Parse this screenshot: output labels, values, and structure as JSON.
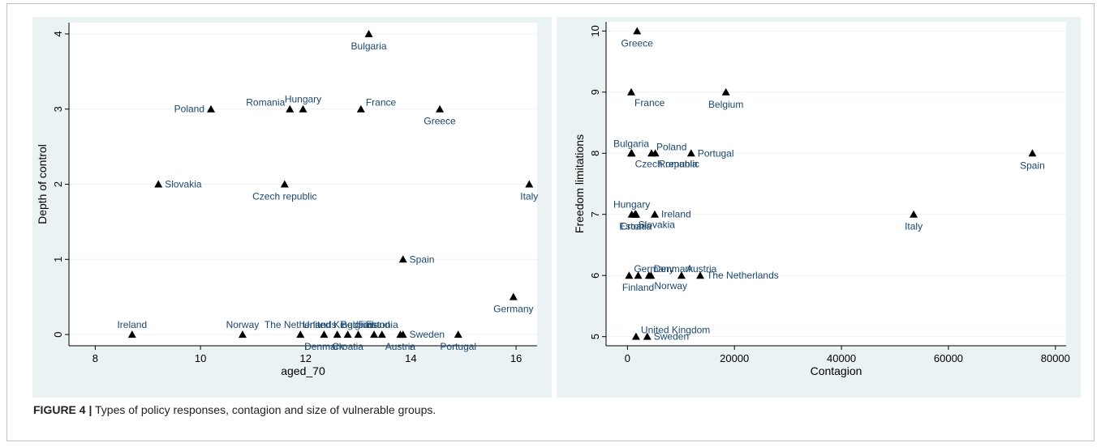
{
  "figure": {
    "label": "FIGURE 4 |",
    "caption": "Types of policy responses, contagion and size of vulnerable groups."
  },
  "colors": {
    "panel_bg": "#eaf2f3",
    "label_text": "#1a476f",
    "marker": "#000000",
    "grid": "#ffffff"
  },
  "chart_data": [
    {
      "type": "scatter",
      "xlabel": "aged_70",
      "ylabel": "Depth of control",
      "xlim": [
        7.5,
        16.4
      ],
      "ylim": [
        -0.15,
        4.15
      ],
      "xticks": [
        "8",
        "10",
        "12",
        "14",
        "16"
      ],
      "xtick_values": [
        8,
        10,
        12,
        14,
        16
      ],
      "yticks": [
        "0",
        "1",
        "2",
        "3",
        "4"
      ],
      "ytick_values": [
        0,
        1,
        2,
        3,
        4
      ],
      "grid": true,
      "points": [
        {
          "label": "Bulgaria",
          "x": 13.2,
          "y": 4,
          "pos": "below"
        },
        {
          "label": "Poland",
          "x": 10.2,
          "y": 3,
          "pos": "left"
        },
        {
          "label": "Romania",
          "x": 11.7,
          "y": 3,
          "pos": "upper-left"
        },
        {
          "label": "Hungary",
          "x": 11.95,
          "y": 3,
          "pos": "above"
        },
        {
          "label": "France",
          "x": 13.05,
          "y": 3,
          "pos": "upper-right"
        },
        {
          "label": "Greece",
          "x": 14.55,
          "y": 3,
          "pos": "below"
        },
        {
          "label": "Slovakia",
          "x": 9.2,
          "y": 2,
          "pos": "right"
        },
        {
          "label": "Czech republic",
          "x": 11.6,
          "y": 2,
          "pos": "below"
        },
        {
          "label": "Italy",
          "x": 16.25,
          "y": 2,
          "pos": "below"
        },
        {
          "label": "Spain",
          "x": 13.85,
          "y": 1,
          "pos": "right"
        },
        {
          "label": "Germany",
          "x": 15.95,
          "y": 0.5,
          "pos": "below"
        },
        {
          "label": "Ireland",
          "x": 8.7,
          "y": 0,
          "pos": "above"
        },
        {
          "label": "Norway",
          "x": 10.8,
          "y": 0,
          "pos": "above"
        },
        {
          "label": "The Netherlands",
          "x": 11.9,
          "y": 0,
          "pos": "above"
        },
        {
          "label": "Denmark",
          "x": 12.35,
          "y": 0,
          "pos": "below"
        },
        {
          "label": "United Kingdom",
          "x": 12.6,
          "y": 0,
          "pos": "above"
        },
        {
          "label": "Croatia",
          "x": 12.8,
          "y": 0,
          "pos": "below"
        },
        {
          "label": "Belgium",
          "x": 13.0,
          "y": 0,
          "pos": "above"
        },
        {
          "label": "Finland",
          "x": 13.3,
          "y": 0,
          "pos": "above"
        },
        {
          "label": "Estonia",
          "x": 13.45,
          "y": 0,
          "pos": "above"
        },
        {
          "label": "Austria",
          "x": 13.8,
          "y": 0,
          "pos": "below"
        },
        {
          "label": "Sweden",
          "x": 13.85,
          "y": 0,
          "pos": "right"
        },
        {
          "label": "Portugal",
          "x": 14.9,
          "y": 0,
          "pos": "below"
        }
      ]
    },
    {
      "type": "scatter",
      "xlabel": "Contagion",
      "ylabel": "Freedom limitations",
      "xlim": [
        -4000,
        82000
      ],
      "ylim": [
        4.85,
        10.15
      ],
      "xticks": [
        "0",
        "20000",
        "40000",
        "60000",
        "80000"
      ],
      "xtick_values": [
        0,
        20000,
        40000,
        60000,
        80000
      ],
      "yticks": [
        "5",
        "6",
        "7",
        "8",
        "9",
        "10"
      ],
      "ytick_values": [
        5,
        6,
        7,
        8,
        9,
        10
      ],
      "grid": true,
      "points": [
        {
          "label": "Greece",
          "x": 1800,
          "y": 10,
          "pos": "below"
        },
        {
          "label": "France",
          "x": 700,
          "y": 9,
          "pos": "below-right"
        },
        {
          "label": "Belgium",
          "x": 18400,
          "y": 9,
          "pos": "below"
        },
        {
          "label": "Bulgaria",
          "x": 700,
          "y": 8,
          "pos": "above"
        },
        {
          "label": "Czech republic",
          "x": 800,
          "y": 8,
          "pos": "below-right"
        },
        {
          "label": "Poland",
          "x": 4500,
          "y": 8,
          "pos": "upper-right"
        },
        {
          "label": "Romania",
          "x": 5200,
          "y": 8,
          "pos": "below-right"
        },
        {
          "label": "Portugal",
          "x": 11900,
          "y": 8,
          "pos": "right"
        },
        {
          "label": "Spain",
          "x": 75700,
          "y": 8,
          "pos": "below"
        },
        {
          "label": "Hungary",
          "x": 800,
          "y": 7,
          "pos": "above"
        },
        {
          "label": "Slovakia",
          "x": 1400,
          "y": 7,
          "pos": "below-right"
        },
        {
          "label": "Estonia",
          "x": 1500,
          "y": 7,
          "pos": "below"
        },
        {
          "label": "Croatia",
          "x": 1600,
          "y": 7,
          "pos": "below"
        },
        {
          "label": "Ireland",
          "x": 5100,
          "y": 7,
          "pos": "right"
        },
        {
          "label": "Italy",
          "x": 53500,
          "y": 7,
          "pos": "below"
        },
        {
          "label": "Germany",
          "x": 300,
          "y": 6,
          "pos": "upper-right"
        },
        {
          "label": "Finland",
          "x": 2000,
          "y": 6,
          "pos": "below"
        },
        {
          "label": "Denmark",
          "x": 4000,
          "y": 6,
          "pos": "upper-right"
        },
        {
          "label": "Norway",
          "x": 4400,
          "y": 6,
          "pos": "below-right"
        },
        {
          "label": "Austria",
          "x": 10100,
          "y": 6,
          "pos": "upper-right"
        },
        {
          "label": "The Netherlands",
          "x": 13600,
          "y": 6,
          "pos": "right"
        },
        {
          "label": "United Kingdom",
          "x": 1600,
          "y": 5,
          "pos": "upper-right"
        },
        {
          "label": "Sweden",
          "x": 3700,
          "y": 5,
          "pos": "right"
        }
      ]
    }
  ]
}
